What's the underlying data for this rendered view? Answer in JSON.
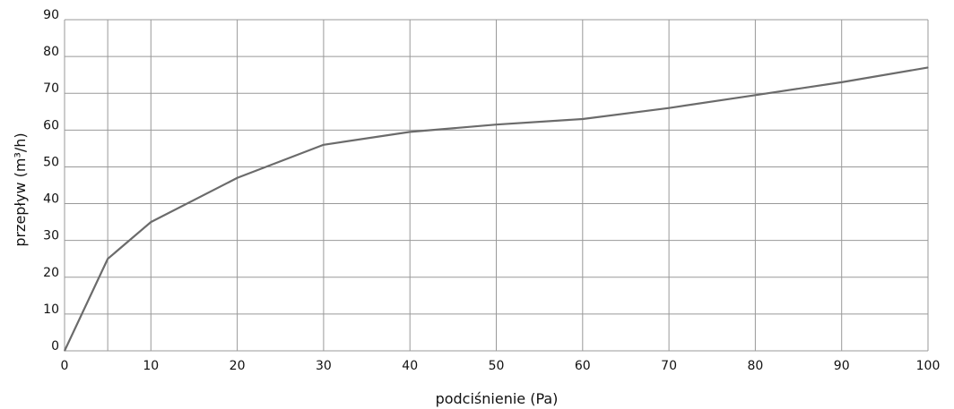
{
  "chart_data": {
    "type": "line",
    "title": "",
    "xlabel": "podciśnienie (Pa)",
    "ylabel": "przepływ (m³/h)",
    "xlim": [
      0,
      100
    ],
    "ylim": [
      0,
      90
    ],
    "x_ticks": [
      0,
      10,
      20,
      30,
      40,
      50,
      60,
      70,
      80,
      90,
      100
    ],
    "x_minor_ticks": [
      5
    ],
    "y_ticks": [
      0,
      10,
      20,
      30,
      40,
      50,
      60,
      70,
      80,
      90
    ],
    "grid": true,
    "line_color": "#6b6b6b",
    "grid_color": "#999999",
    "series": [
      {
        "x": [
          0,
          5,
          10,
          20,
          30,
          40,
          50,
          60,
          70,
          80,
          90,
          100
        ],
        "y": [
          0,
          25,
          35,
          47,
          56,
          59.5,
          61.5,
          63,
          66,
          69.5,
          73,
          77
        ]
      }
    ]
  }
}
